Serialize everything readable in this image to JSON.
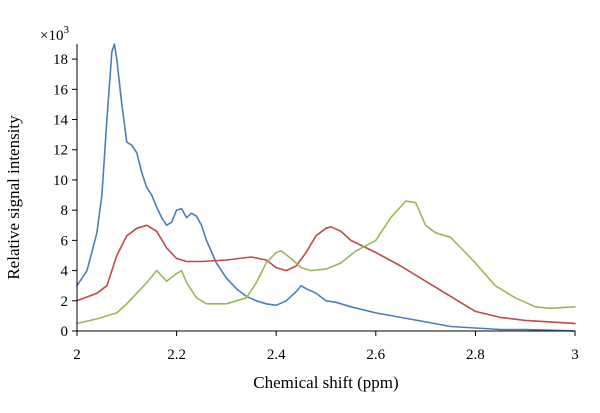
{
  "chart_data": {
    "type": "line",
    "title": "",
    "xlabel": "Chemical shift (ppm)",
    "ylabel": "Relative signal intensity",
    "y_multiplier_label": "×10",
    "y_multiplier_exponent": "3",
    "xlim": [
      2,
      3
    ],
    "ylim": [
      0,
      19
    ],
    "xticks": [
      2,
      2.2,
      2.4,
      2.6,
      2.8,
      3
    ],
    "xtick_labels": [
      "2",
      "2.2",
      "2.4",
      "2.6",
      "2.8",
      "3"
    ],
    "yticks": [
      0,
      2,
      4,
      6,
      8,
      10,
      12,
      14,
      16,
      18
    ],
    "ytick_labels": [
      "0",
      "2",
      "4",
      "6",
      "8",
      "10",
      "12",
      "14",
      "16",
      "18"
    ],
    "grid": false,
    "legend": "none",
    "series": [
      {
        "color": "#4a7ebb",
        "x": [
          2.0,
          2.02,
          2.04,
          2.05,
          2.06,
          2.07,
          2.075,
          2.08,
          2.09,
          2.1,
          2.11,
          2.12,
          2.13,
          2.14,
          2.15,
          2.16,
          2.17,
          2.18,
          2.19,
          2.2,
          2.21,
          2.22,
          2.23,
          2.24,
          2.25,
          2.26,
          2.28,
          2.3,
          2.32,
          2.34,
          2.36,
          2.38,
          2.4,
          2.42,
          2.44,
          2.45,
          2.46,
          2.48,
          2.5,
          2.52,
          2.55,
          2.6,
          2.65,
          2.7,
          2.75,
          2.8,
          2.85,
          2.9,
          2.95,
          3.0
        ],
        "y": [
          3.0,
          4.0,
          6.5,
          9.0,
          14.0,
          18.5,
          19.0,
          18.0,
          15.0,
          12.5,
          12.3,
          11.8,
          10.5,
          9.5,
          9.0,
          8.2,
          7.5,
          7.0,
          7.2,
          8.0,
          8.1,
          7.5,
          7.8,
          7.6,
          7.0,
          6.0,
          4.5,
          3.5,
          2.8,
          2.3,
          2.0,
          1.8,
          1.7,
          2.0,
          2.6,
          3.0,
          2.8,
          2.5,
          2.0,
          1.9,
          1.6,
          1.2,
          0.9,
          0.6,
          0.3,
          0.2,
          0.1,
          0.1,
          0.05,
          0.0
        ]
      },
      {
        "color": "#be4b48",
        "x": [
          2.0,
          2.04,
          2.06,
          2.08,
          2.1,
          2.12,
          2.14,
          2.16,
          2.18,
          2.2,
          2.22,
          2.25,
          2.3,
          2.35,
          2.38,
          2.4,
          2.42,
          2.44,
          2.46,
          2.48,
          2.5,
          2.51,
          2.53,
          2.55,
          2.6,
          2.65,
          2.7,
          2.75,
          2.8,
          2.85,
          2.9,
          2.95,
          3.0
        ],
        "y": [
          2.0,
          2.5,
          3.0,
          5.0,
          6.3,
          6.8,
          7.0,
          6.6,
          5.5,
          4.8,
          4.6,
          4.6,
          4.7,
          4.9,
          4.7,
          4.2,
          4.0,
          4.3,
          5.2,
          6.3,
          6.8,
          6.9,
          6.6,
          6.0,
          5.2,
          4.3,
          3.3,
          2.3,
          1.3,
          0.9,
          0.7,
          0.6,
          0.5
        ]
      },
      {
        "color": "#98b954",
        "x": [
          2.0,
          2.04,
          2.08,
          2.1,
          2.12,
          2.14,
          2.16,
          2.18,
          2.2,
          2.21,
          2.22,
          2.24,
          2.26,
          2.3,
          2.34,
          2.36,
          2.38,
          2.4,
          2.41,
          2.43,
          2.45,
          2.47,
          2.5,
          2.53,
          2.56,
          2.6,
          2.63,
          2.66,
          2.68,
          2.7,
          2.72,
          2.75,
          2.78,
          2.8,
          2.84,
          2.88,
          2.92,
          2.95,
          3.0
        ],
        "y": [
          0.5,
          0.8,
          1.2,
          1.8,
          2.5,
          3.2,
          4.0,
          3.3,
          3.8,
          4.0,
          3.2,
          2.2,
          1.8,
          1.8,
          2.2,
          3.2,
          4.5,
          5.2,
          5.3,
          4.8,
          4.2,
          4.0,
          4.1,
          4.5,
          5.3,
          6.0,
          7.5,
          8.6,
          8.5,
          7.0,
          6.5,
          6.2,
          5.2,
          4.5,
          3.0,
          2.2,
          1.6,
          1.5,
          1.6
        ]
      }
    ]
  }
}
